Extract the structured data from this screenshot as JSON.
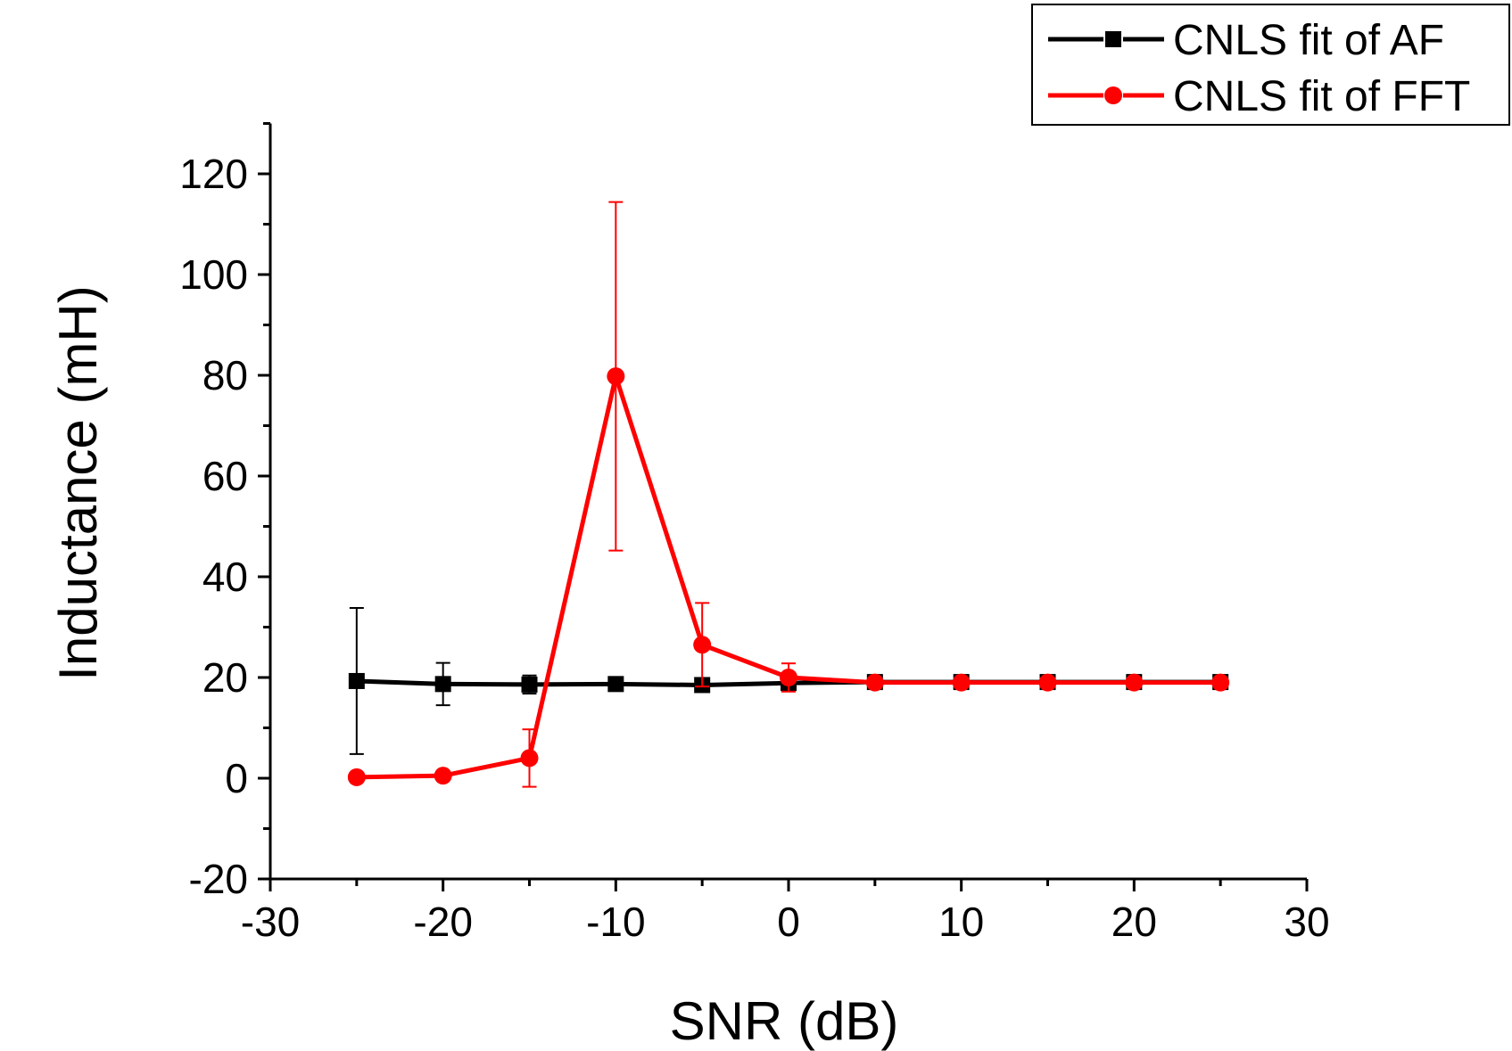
{
  "chart_data": {
    "type": "line",
    "title": "",
    "xlabel": "SNR (dB)",
    "ylabel": "Inductance (mH)",
    "xlim": [
      -30,
      30
    ],
    "ylim": [
      -20,
      130
    ],
    "xticks": [
      -30,
      -20,
      -10,
      0,
      10,
      20,
      30
    ],
    "yticks": [
      -20,
      0,
      20,
      40,
      60,
      80,
      100,
      120
    ],
    "xtick_labels": [
      "-30",
      "-20",
      "-10",
      "0",
      "10",
      "20",
      "30"
    ],
    "ytick_labels": [
      "-20",
      "0",
      "20",
      "40",
      "60",
      "80",
      "100",
      "120"
    ],
    "legend_position": "top-right",
    "series": [
      {
        "name": "CNLS fit of AF",
        "color": "#000000",
        "marker": "square",
        "x": [
          -25,
          -20,
          -15,
          -10,
          -5,
          0,
          5,
          10,
          15,
          20,
          25
        ],
        "y": [
          19.3,
          18.7,
          18.6,
          18.7,
          18.5,
          18.9,
          19.1,
          19.1,
          19.1,
          19.1,
          19.1
        ],
        "error": [
          14.5,
          4.2,
          1.8,
          1.0,
          0.8,
          0.5,
          0.4,
          0.4,
          0.4,
          0.4,
          0.4
        ]
      },
      {
        "name": "CNLS fit of FFT",
        "color": "#ff0000",
        "marker": "circle",
        "x": [
          -25,
          -20,
          -15,
          -10,
          -5,
          0,
          5,
          10,
          15,
          20,
          25
        ],
        "y": [
          0.2,
          0.5,
          4.0,
          79.8,
          26.5,
          20.0,
          19.0,
          19.0,
          19.0,
          19.0,
          19.0
        ],
        "error": [
          0.3,
          0.3,
          5.7,
          34.6,
          8.3,
          2.8,
          0.5,
          0.5,
          0.5,
          0.5,
          0.5
        ]
      }
    ]
  }
}
